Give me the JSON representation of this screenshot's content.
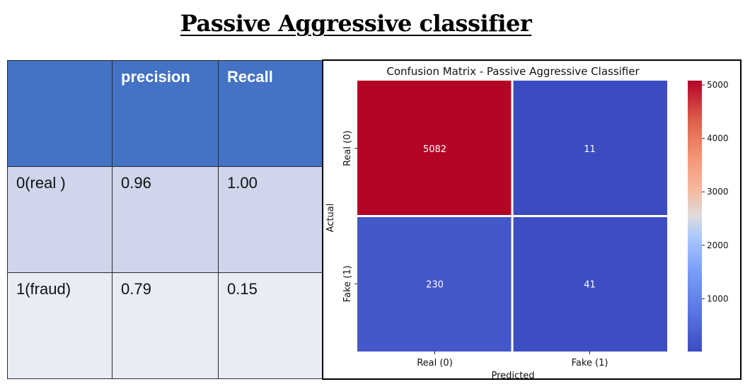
{
  "slide": {
    "title": "Passive Aggressive classifier"
  },
  "table": {
    "headers": [
      "",
      "precision",
      "Recall",
      ""
    ],
    "rows": [
      [
        "0(real )",
        "0.96",
        "1.00",
        ""
      ],
      [
        "1(fraud)",
        "0.79",
        "0.15",
        ""
      ]
    ]
  },
  "chart_data": {
    "type": "heatmap",
    "title": "Confusion Matrix - Passive Aggressive Classifier",
    "xlabel": "Predicted",
    "ylabel": "Actual",
    "x_categories": [
      "Real (0)",
      "Fake (1)"
    ],
    "y_categories": [
      "Real (0)",
      "Fake (1)"
    ],
    "values": [
      [
        5082,
        11
      ],
      [
        230,
        41
      ]
    ],
    "colormap": "coolwarm",
    "colorbar": {
      "min": 11,
      "max": 5082,
      "ticks": [
        1000,
        2000,
        3000,
        4000,
        5000
      ]
    },
    "colors": {
      "low": "#3b4cc0",
      "mid": "#dddddd",
      "high": "#b40426"
    }
  }
}
